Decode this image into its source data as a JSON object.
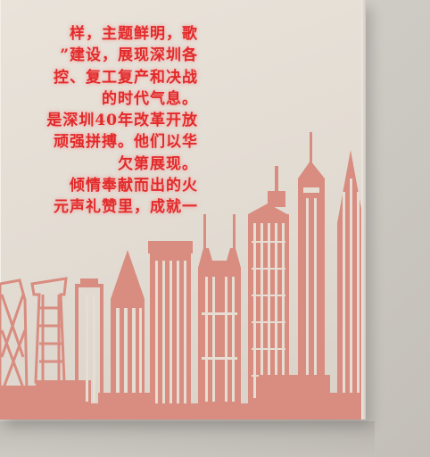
{
  "board": {
    "lines": [
      "样，主题鲜明，歌",
      "”建设，展现深圳各",
      "控、复工复产和决战",
      "的时代气息。",
      "是深圳40年改革开放",
      "顽强拼搏。他们以华",
      "欠第展现。",
      "倾情奉献而出的火",
      "元声礼赞里，成就一"
    ]
  },
  "colors": {
    "text": "#e12a2a",
    "skyline": "#d98c80",
    "board": "#e6e0d7",
    "wall": "#cbc7c1"
  }
}
